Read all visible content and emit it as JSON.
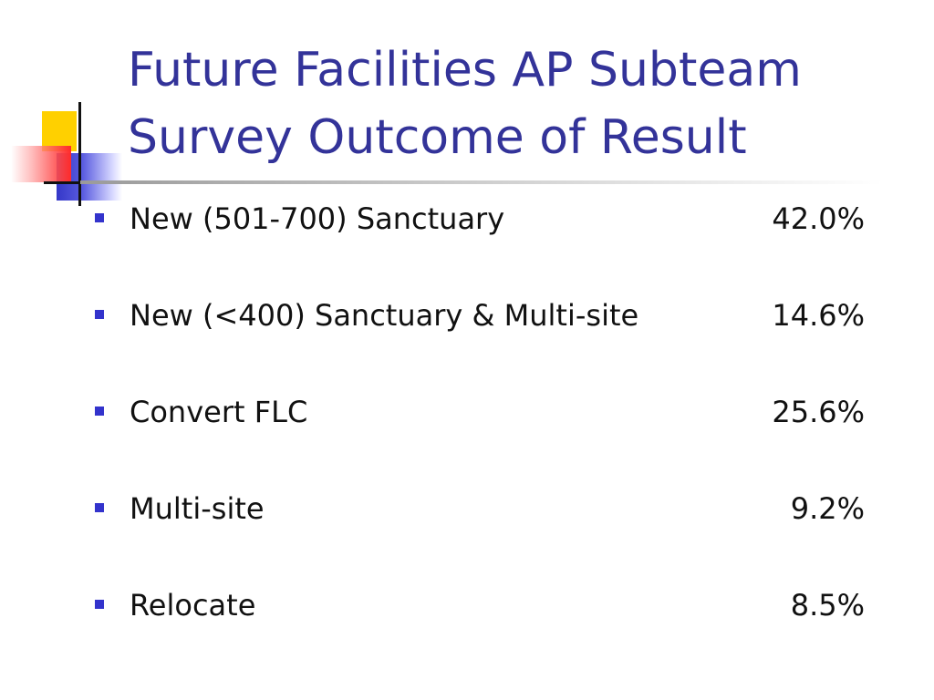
{
  "slide": {
    "title_line_1": "Future Facilities AP Subteam",
    "title_line_2": "Survey Outcome of Result",
    "title_color": "#333399",
    "bullet_color": "#3333cc",
    "items": [
      {
        "label": "New (501-700) Sanctuary",
        "value": "42.0%"
      },
      {
        "label": "New (<400) Sanctuary & Multi-site",
        "value": "14.6%"
      },
      {
        "label": "Convert FLC",
        "value": "25.6%"
      },
      {
        "label": "Multi-site",
        "value": "9.2%"
      },
      {
        "label": "Relocate",
        "value": "8.5%"
      }
    ]
  }
}
